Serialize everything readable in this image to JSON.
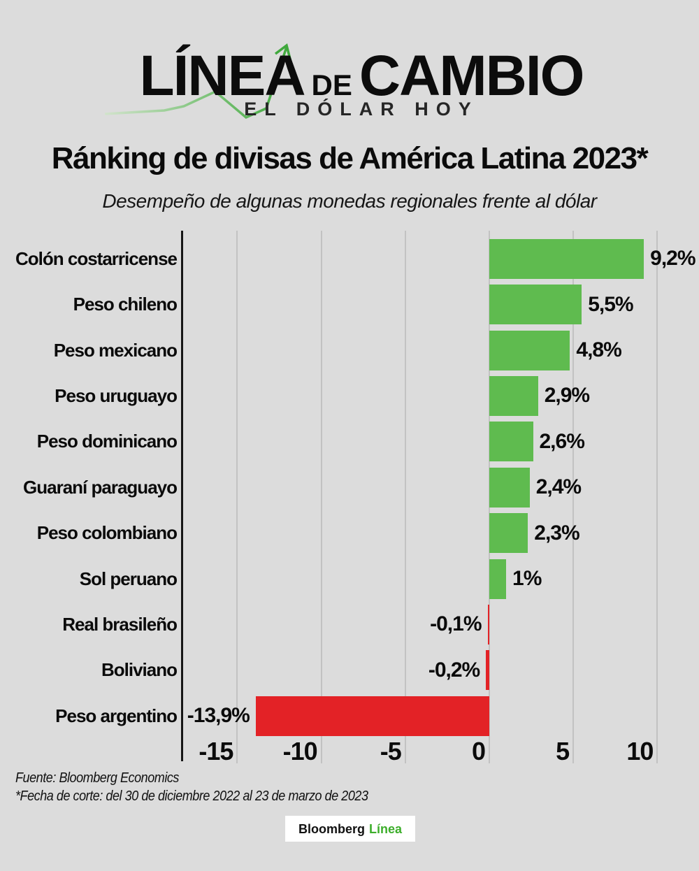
{
  "header": {
    "logo_primary": "LÍNEA",
    "logo_connector": "DE",
    "logo_secondary": "CAMBIO",
    "logo_tagline": "EL DÓLAR HOY"
  },
  "title": "Ránking de divisas de América Latina 2023*",
  "subtitle": "Desempeño de algunas monedas regionales frente al dólar",
  "chart_data": {
    "type": "bar",
    "orientation": "horizontal",
    "title": "Ránking de divisas de América Latina 2023*",
    "subtitle": "Desempeño de algunas monedas regionales frente al dólar",
    "categories": [
      "Colón costarricense",
      "Peso chileno",
      "Peso mexicano",
      "Peso uruguayo",
      "Peso dominicano",
      "Guaraní paraguayo",
      "Peso colombiano",
      "Sol peruano",
      "Real brasileño",
      "Boliviano",
      "Peso argentino"
    ],
    "values": [
      9.2,
      5.5,
      4.8,
      2.9,
      2.6,
      2.4,
      2.3,
      1,
      -0.1,
      -0.2,
      -13.9
    ],
    "value_labels": [
      "9,2%",
      "5,5%",
      "4,8%",
      "2,9%",
      "2,6%",
      "2,4%",
      "2,3%",
      "1%",
      "-0,1%",
      "-0,2%",
      "-13,9%"
    ],
    "unit": "%",
    "x_ticks": [
      -15,
      -10,
      -5,
      0,
      5,
      10
    ],
    "x_tick_labels": [
      "-15",
      "-10",
      "-5",
      "0",
      "5",
      "10"
    ],
    "xlim": [
      -18.3,
      11
    ],
    "grid": true,
    "legend": "none",
    "positive_color": "#5fbb4f",
    "negative_color": "#e32226",
    "gridline_color": "#c2c2c2",
    "axis_line_color": "#161616"
  },
  "footer": {
    "source": "Fuente: Bloomberg Economics",
    "note": "*Fecha de corte: del 30 de diciembre 2022 al 23 de marzo de 2023"
  },
  "badge": {
    "brand": "Bloomberg",
    "brand_accent": "Línea",
    "accent_color": "#3dae2b"
  }
}
